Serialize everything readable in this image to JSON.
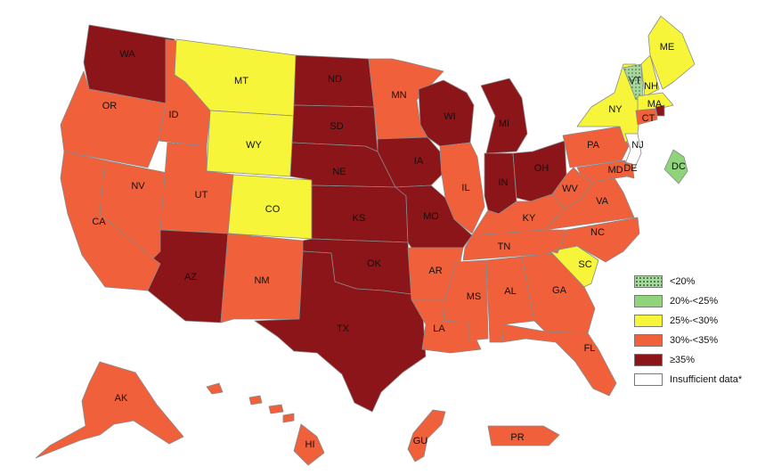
{
  "colors": {
    "lt20": "#a8d8a0",
    "20_25": "#8fd37a",
    "25_30": "#f6f53a",
    "30_35": "#f0603a",
    "ge35": "#8b1518",
    "insufficient": "#ffffff"
  },
  "legend": {
    "items": [
      {
        "label": "<20%",
        "category": "lt20"
      },
      {
        "label": "20%-<25%",
        "category": "20_25"
      },
      {
        "label": "25%-<30%",
        "category": "25_30"
      },
      {
        "label": "30%-<35%",
        "category": "30_35"
      },
      {
        "label": "≥35%",
        "category": "ge35"
      },
      {
        "label": "Insufficient data*",
        "category": "insufficient"
      }
    ]
  },
  "states": [
    {
      "abbr": "WA",
      "category": "ge35"
    },
    {
      "abbr": "OR",
      "category": "30_35"
    },
    {
      "abbr": "CA",
      "category": "30_35"
    },
    {
      "abbr": "NV",
      "category": "30_35"
    },
    {
      "abbr": "ID",
      "category": "30_35"
    },
    {
      "abbr": "MT",
      "category": "25_30"
    },
    {
      "abbr": "WY",
      "category": "25_30"
    },
    {
      "abbr": "UT",
      "category": "30_35"
    },
    {
      "abbr": "CO",
      "category": "25_30"
    },
    {
      "abbr": "AZ",
      "category": "ge35"
    },
    {
      "abbr": "NM",
      "category": "30_35"
    },
    {
      "abbr": "ND",
      "category": "ge35"
    },
    {
      "abbr": "SD",
      "category": "ge35"
    },
    {
      "abbr": "NE",
      "category": "ge35"
    },
    {
      "abbr": "KS",
      "category": "ge35"
    },
    {
      "abbr": "OK",
      "category": "ge35"
    },
    {
      "abbr": "TX",
      "category": "ge35"
    },
    {
      "abbr": "MN",
      "category": "30_35"
    },
    {
      "abbr": "IA",
      "category": "ge35"
    },
    {
      "abbr": "MO",
      "category": "ge35"
    },
    {
      "abbr": "AR",
      "category": "30_35"
    },
    {
      "abbr": "LA",
      "category": "30_35"
    },
    {
      "abbr": "WI",
      "category": "ge35"
    },
    {
      "abbr": "IL",
      "category": "30_35"
    },
    {
      "abbr": "MI",
      "category": "ge35"
    },
    {
      "abbr": "IN",
      "category": "ge35"
    },
    {
      "abbr": "OH",
      "category": "ge35"
    },
    {
      "abbr": "KY",
      "category": "30_35"
    },
    {
      "abbr": "TN",
      "category": "30_35"
    },
    {
      "abbr": "MS",
      "category": "30_35"
    },
    {
      "abbr": "AL",
      "category": "30_35"
    },
    {
      "abbr": "GA",
      "category": "30_35"
    },
    {
      "abbr": "FL",
      "category": "30_35"
    },
    {
      "abbr": "SC",
      "category": "25_30"
    },
    {
      "abbr": "NC",
      "category": "30_35"
    },
    {
      "abbr": "VA",
      "category": "30_35"
    },
    {
      "abbr": "WV",
      "category": "30_35"
    },
    {
      "abbr": "PA",
      "category": "30_35"
    },
    {
      "abbr": "NY",
      "category": "25_30"
    },
    {
      "abbr": "VT",
      "category": "lt20"
    },
    {
      "abbr": "NH",
      "category": "25_30"
    },
    {
      "abbr": "ME",
      "category": "25_30"
    },
    {
      "abbr": "MA",
      "category": "25_30"
    },
    {
      "abbr": "RI",
      "category": "ge35"
    },
    {
      "abbr": "CT",
      "category": "30_35"
    },
    {
      "abbr": "NJ",
      "category": "insufficient"
    },
    {
      "abbr": "DE",
      "category": "30_35"
    },
    {
      "abbr": "MD",
      "category": "30_35"
    },
    {
      "abbr": "DC",
      "category": "20_25"
    },
    {
      "abbr": "AK",
      "category": "30_35"
    },
    {
      "abbr": "HI",
      "category": "30_35"
    },
    {
      "abbr": "GU",
      "category": "30_35"
    },
    {
      "abbr": "PR",
      "category": "30_35"
    }
  ]
}
